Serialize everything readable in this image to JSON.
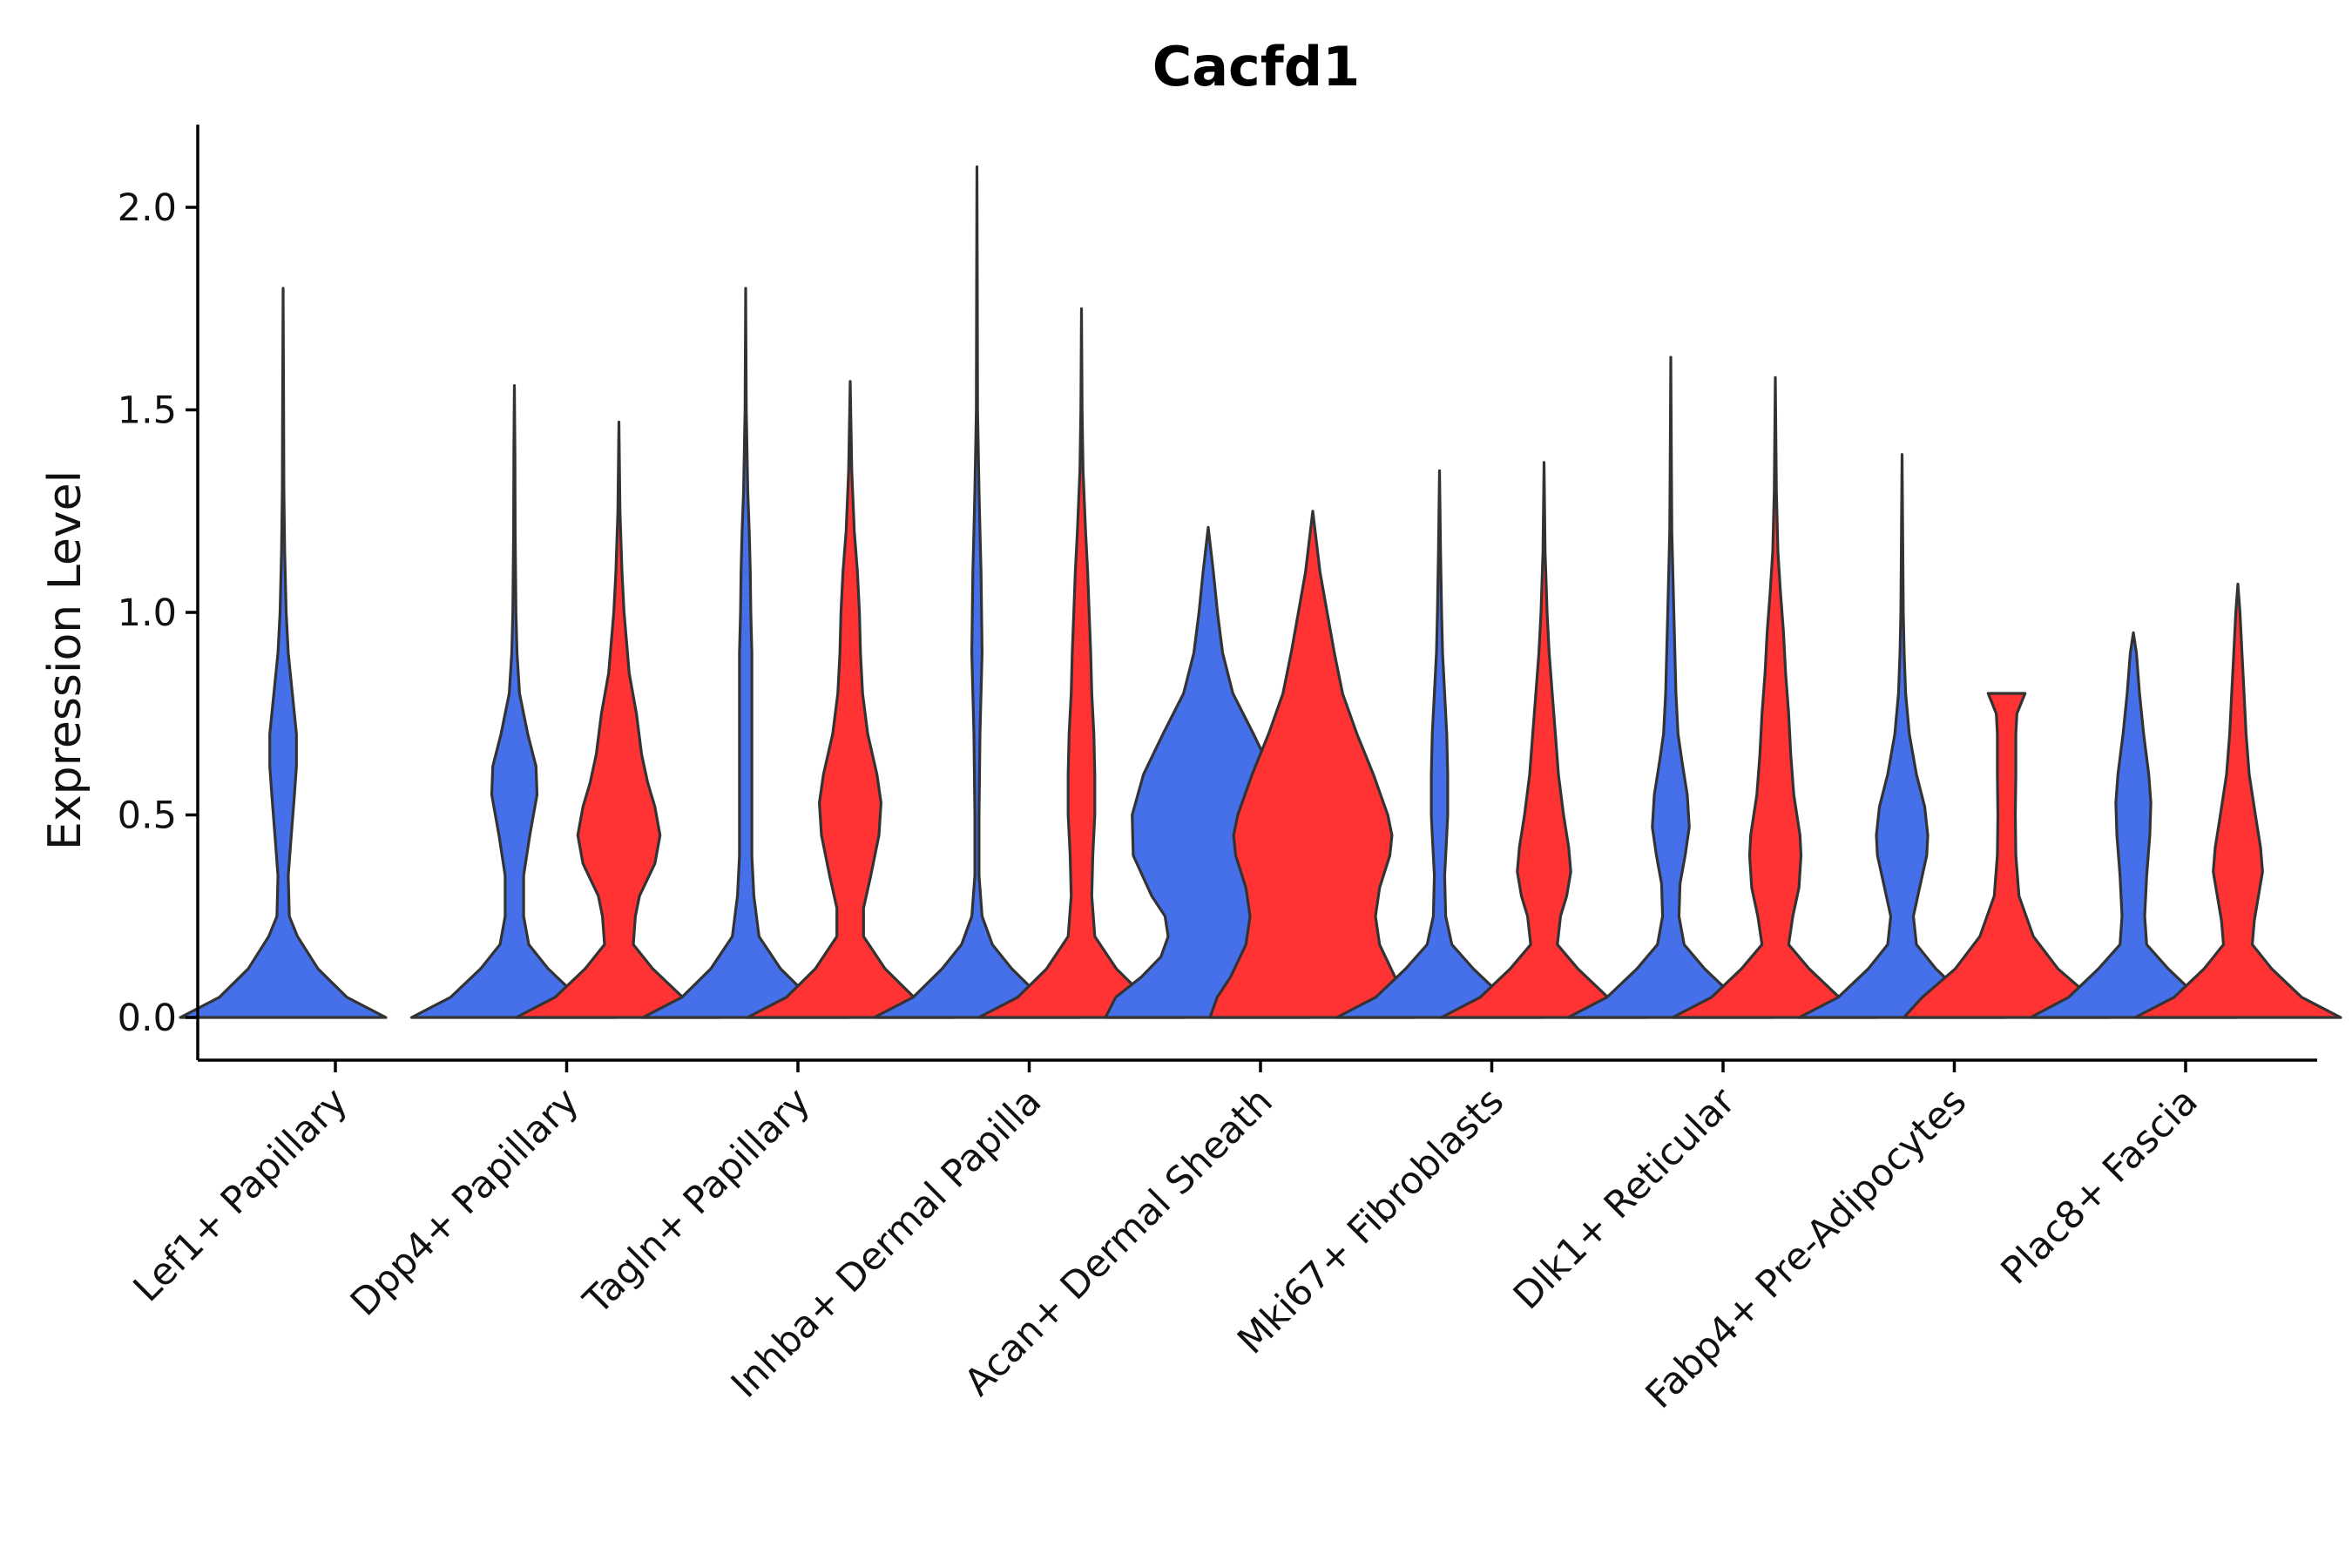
{
  "chart_data": {
    "type": "violin",
    "title": "Cacfd1",
    "xlabel": "",
    "ylabel": "Expression Level",
    "ylim": [
      -0.11,
      2.2
    ],
    "yticks": [
      0.0,
      0.5,
      1.0,
      1.5,
      2.0
    ],
    "ytick_labels": [
      "0.0",
      "0.5",
      "1.0",
      "1.5",
      "2.0"
    ],
    "grid": false,
    "legend": "none",
    "series_colors": [
      "#4670EA",
      "#FF3333"
    ],
    "categories": [
      "Lef1+ Papillary",
      "Dpp4+ Papillary",
      "Tagln+ Papillary",
      "Inhba+ Dermal Papilla",
      "Acan+ Dermal Sheath",
      "Mki67+ Fibroblasts",
      "Dlk1+ Reticular",
      "Fabp4+ Pre-Adipocytes",
      "Plac8+ Fascia"
    ],
    "violins": [
      {
        "category": "Lef1+ Papillary",
        "group": 0,
        "max": 1.8,
        "profile": [
          [
            0,
            1.0
          ],
          [
            0.05,
            0.62
          ],
          [
            0.12,
            0.34
          ],
          [
            0.2,
            0.14
          ],
          [
            0.25,
            0.06
          ],
          [
            0.35,
            0.05
          ],
          [
            0.45,
            0.08
          ],
          [
            0.55,
            0.11
          ],
          [
            0.62,
            0.13
          ],
          [
            0.7,
            0.13
          ],
          [
            0.8,
            0.09
          ],
          [
            0.9,
            0.05
          ],
          [
            1.0,
            0.03
          ],
          [
            1.15,
            0.015
          ],
          [
            1.3,
            0.008
          ],
          [
            1.5,
            0.005
          ],
          [
            1.8,
            0.0
          ]
        ]
      },
      {
        "category": "Dpp4+ Papillary",
        "group": 0,
        "max": 1.56,
        "profile": [
          [
            0,
            1.0
          ],
          [
            0.05,
            0.62
          ],
          [
            0.12,
            0.33
          ],
          [
            0.18,
            0.14
          ],
          [
            0.25,
            0.09
          ],
          [
            0.35,
            0.09
          ],
          [
            0.45,
            0.15
          ],
          [
            0.55,
            0.22
          ],
          [
            0.62,
            0.21
          ],
          [
            0.7,
            0.13
          ],
          [
            0.8,
            0.05
          ],
          [
            0.9,
            0.025
          ],
          [
            1.0,
            0.015
          ],
          [
            1.2,
            0.008
          ],
          [
            1.4,
            0.005
          ],
          [
            1.56,
            0.0
          ]
        ]
      },
      {
        "category": "Dpp4+ Papillary",
        "group": 1,
        "max": 1.47,
        "profile": [
          [
            0,
            1.0
          ],
          [
            0.05,
            0.62
          ],
          [
            0.12,
            0.33
          ],
          [
            0.18,
            0.14
          ],
          [
            0.25,
            0.16
          ],
          [
            0.3,
            0.2
          ],
          [
            0.38,
            0.35
          ],
          [
            0.45,
            0.4
          ],
          [
            0.52,
            0.35
          ],
          [
            0.58,
            0.28
          ],
          [
            0.65,
            0.22
          ],
          [
            0.75,
            0.17
          ],
          [
            0.85,
            0.1
          ],
          [
            1.0,
            0.05
          ],
          [
            1.1,
            0.03
          ],
          [
            1.25,
            0.01
          ],
          [
            1.47,
            0.0
          ]
        ]
      },
      {
        "category": "Tagln+ Papillary",
        "group": 0,
        "max": 1.8,
        "profile": [
          [
            0,
            1.0
          ],
          [
            0.05,
            0.62
          ],
          [
            0.12,
            0.34
          ],
          [
            0.2,
            0.13
          ],
          [
            0.3,
            0.08
          ],
          [
            0.4,
            0.06
          ],
          [
            0.5,
            0.06
          ],
          [
            0.6,
            0.06
          ],
          [
            0.7,
            0.06
          ],
          [
            0.8,
            0.06
          ],
          [
            0.9,
            0.06
          ],
          [
            1.0,
            0.05
          ],
          [
            1.1,
            0.045
          ],
          [
            1.2,
            0.035
          ],
          [
            1.3,
            0.02
          ],
          [
            1.5,
            0.006
          ],
          [
            1.8,
            0.0
          ]
        ]
      },
      {
        "category": "Tagln+ Papillary",
        "group": 1,
        "max": 1.57,
        "profile": [
          [
            0,
            1.0
          ],
          [
            0.05,
            0.62
          ],
          [
            0.12,
            0.34
          ],
          [
            0.2,
            0.13
          ],
          [
            0.27,
            0.13
          ],
          [
            0.35,
            0.2
          ],
          [
            0.45,
            0.28
          ],
          [
            0.53,
            0.3
          ],
          [
            0.6,
            0.26
          ],
          [
            0.7,
            0.17
          ],
          [
            0.8,
            0.12
          ],
          [
            0.9,
            0.1
          ],
          [
            1.0,
            0.09
          ],
          [
            1.1,
            0.07
          ],
          [
            1.2,
            0.04
          ],
          [
            1.35,
            0.015
          ],
          [
            1.57,
            0.0
          ]
        ]
      },
      {
        "category": "Inhba+ Dermal Papilla",
        "group": 0,
        "max": 2.1,
        "profile": [
          [
            0,
            1.0
          ],
          [
            0.05,
            0.62
          ],
          [
            0.12,
            0.34
          ],
          [
            0.18,
            0.15
          ],
          [
            0.25,
            0.05
          ],
          [
            0.35,
            0.02
          ],
          [
            0.5,
            0.02
          ],
          [
            0.7,
            0.03
          ],
          [
            0.85,
            0.045
          ],
          [
            0.9,
            0.05
          ],
          [
            1.0,
            0.045
          ],
          [
            1.1,
            0.04
          ],
          [
            1.2,
            0.03
          ],
          [
            1.3,
            0.02
          ],
          [
            1.5,
            0.006
          ],
          [
            1.8,
            0.003
          ],
          [
            2.1,
            0.0
          ]
        ]
      },
      {
        "category": "Inhba+ Dermal Papilla",
        "group": 1,
        "max": 1.75,
        "profile": [
          [
            0,
            1.0
          ],
          [
            0.05,
            0.62
          ],
          [
            0.12,
            0.34
          ],
          [
            0.2,
            0.13
          ],
          [
            0.3,
            0.1
          ],
          [
            0.4,
            0.11
          ],
          [
            0.5,
            0.13
          ],
          [
            0.6,
            0.13
          ],
          [
            0.7,
            0.12
          ],
          [
            0.8,
            0.1
          ],
          [
            0.9,
            0.09
          ],
          [
            1.0,
            0.075
          ],
          [
            1.1,
            0.06
          ],
          [
            1.2,
            0.04
          ],
          [
            1.35,
            0.015
          ],
          [
            1.5,
            0.006
          ],
          [
            1.75,
            0.0
          ]
        ]
      },
      {
        "category": "Acan+ Dermal Sheath",
        "group": 0,
        "max": 1.21,
        "profile": [
          [
            0,
            1.0
          ],
          [
            0.05,
            0.9
          ],
          [
            0.1,
            0.65
          ],
          [
            0.15,
            0.46
          ],
          [
            0.2,
            0.39
          ],
          [
            0.25,
            0.42
          ],
          [
            0.3,
            0.55
          ],
          [
            0.4,
            0.73
          ],
          [
            0.5,
            0.74
          ],
          [
            0.6,
            0.63
          ],
          [
            0.7,
            0.44
          ],
          [
            0.8,
            0.24
          ],
          [
            0.9,
            0.14
          ],
          [
            1.0,
            0.09
          ],
          [
            1.1,
            0.05
          ],
          [
            1.21,
            0.0
          ]
        ]
      },
      {
        "category": "Acan+ Dermal Sheath",
        "group": 1,
        "max": 1.25,
        "profile": [
          [
            0,
            1.0
          ],
          [
            0.05,
            0.93
          ],
          [
            0.1,
            0.8
          ],
          [
            0.18,
            0.65
          ],
          [
            0.25,
            0.61
          ],
          [
            0.32,
            0.65
          ],
          [
            0.4,
            0.75
          ],
          [
            0.45,
            0.77
          ],
          [
            0.5,
            0.73
          ],
          [
            0.6,
            0.59
          ],
          [
            0.7,
            0.43
          ],
          [
            0.8,
            0.29
          ],
          [
            0.9,
            0.21
          ],
          [
            1.0,
            0.14
          ],
          [
            1.1,
            0.07
          ],
          [
            1.25,
            0.0
          ]
        ]
      },
      {
        "category": "Mki67+ Fibroblasts",
        "group": 0,
        "max": 1.35,
        "profile": [
          [
            0,
            1.0
          ],
          [
            0.05,
            0.62
          ],
          [
            0.12,
            0.33
          ],
          [
            0.18,
            0.12
          ],
          [
            0.25,
            0.06
          ],
          [
            0.35,
            0.05
          ],
          [
            0.45,
            0.07
          ],
          [
            0.5,
            0.08
          ],
          [
            0.6,
            0.08
          ],
          [
            0.7,
            0.07
          ],
          [
            0.8,
            0.05
          ],
          [
            0.9,
            0.03
          ],
          [
            1.0,
            0.02
          ],
          [
            1.15,
            0.01
          ],
          [
            1.35,
            0.0
          ]
        ]
      },
      {
        "category": "Mki67+ Fibroblasts",
        "group": 1,
        "max": 1.37,
        "profile": [
          [
            0,
            1.0
          ],
          [
            0.05,
            0.62
          ],
          [
            0.12,
            0.33
          ],
          [
            0.18,
            0.13
          ],
          [
            0.25,
            0.16
          ],
          [
            0.3,
            0.22
          ],
          [
            0.36,
            0.26
          ],
          [
            0.42,
            0.24
          ],
          [
            0.5,
            0.19
          ],
          [
            0.6,
            0.14
          ],
          [
            0.7,
            0.11
          ],
          [
            0.8,
            0.08
          ],
          [
            0.9,
            0.05
          ],
          [
            1.0,
            0.03
          ],
          [
            1.15,
            0.01
          ],
          [
            1.37,
            0.0
          ]
        ]
      },
      {
        "category": "Dlk1+ Reticular",
        "group": 0,
        "max": 1.63,
        "profile": [
          [
            0,
            1.0
          ],
          [
            0.05,
            0.62
          ],
          [
            0.12,
            0.33
          ],
          [
            0.18,
            0.13
          ],
          [
            0.25,
            0.08
          ],
          [
            0.33,
            0.09
          ],
          [
            0.4,
            0.14
          ],
          [
            0.47,
            0.18
          ],
          [
            0.55,
            0.16
          ],
          [
            0.63,
            0.11
          ],
          [
            0.7,
            0.07
          ],
          [
            0.8,
            0.05
          ],
          [
            0.9,
            0.04
          ],
          [
            1.0,
            0.03
          ],
          [
            1.2,
            0.01
          ],
          [
            1.4,
            0.005
          ],
          [
            1.63,
            0.0
          ]
        ]
      },
      {
        "category": "Dlk1+ Reticular",
        "group": 1,
        "max": 1.58,
        "profile": [
          [
            0,
            1.0
          ],
          [
            0.05,
            0.62
          ],
          [
            0.12,
            0.33
          ],
          [
            0.18,
            0.13
          ],
          [
            0.25,
            0.17
          ],
          [
            0.32,
            0.23
          ],
          [
            0.4,
            0.25
          ],
          [
            0.45,
            0.24
          ],
          [
            0.55,
            0.18
          ],
          [
            0.65,
            0.15
          ],
          [
            0.75,
            0.13
          ],
          [
            0.85,
            0.1
          ],
          [
            0.95,
            0.08
          ],
          [
            1.05,
            0.05
          ],
          [
            1.15,
            0.025
          ],
          [
            1.3,
            0.01
          ],
          [
            1.58,
            0.0
          ]
        ]
      },
      {
        "category": "Fabp4+ Pre-Adipocytes",
        "group": 0,
        "max": 1.39,
        "profile": [
          [
            0,
            1.0
          ],
          [
            0.05,
            0.62
          ],
          [
            0.12,
            0.33
          ],
          [
            0.18,
            0.14
          ],
          [
            0.25,
            0.11
          ],
          [
            0.32,
            0.17
          ],
          [
            0.4,
            0.24
          ],
          [
            0.45,
            0.25
          ],
          [
            0.52,
            0.22
          ],
          [
            0.6,
            0.14
          ],
          [
            0.7,
            0.07
          ],
          [
            0.8,
            0.035
          ],
          [
            0.9,
            0.02
          ],
          [
            1.0,
            0.012
          ],
          [
            1.2,
            0.006
          ],
          [
            1.39,
            0.0
          ]
        ]
      },
      {
        "category": "Fabp4+ Pre-Adipocytes",
        "group": 1,
        "max": 0.8,
        "profile": [
          [
            0,
            1.0
          ],
          [
            0.05,
            0.82
          ],
          [
            0.12,
            0.5
          ],
          [
            0.2,
            0.26
          ],
          [
            0.3,
            0.12
          ],
          [
            0.4,
            0.09
          ],
          [
            0.5,
            0.085
          ],
          [
            0.6,
            0.09
          ],
          [
            0.7,
            0.09
          ],
          [
            0.75,
            0.1
          ],
          [
            0.8,
            0.18
          ]
        ]
      },
      {
        "category": "Plac8+ Fascia",
        "group": 0,
        "max": 0.95,
        "profile": [
          [
            0,
            1.0
          ],
          [
            0.05,
            0.63
          ],
          [
            0.12,
            0.34
          ],
          [
            0.18,
            0.13
          ],
          [
            0.25,
            0.11
          ],
          [
            0.35,
            0.13
          ],
          [
            0.45,
            0.16
          ],
          [
            0.53,
            0.17
          ],
          [
            0.6,
            0.15
          ],
          [
            0.7,
            0.1
          ],
          [
            0.8,
            0.06
          ],
          [
            0.9,
            0.03
          ],
          [
            0.95,
            0.0
          ]
        ]
      },
      {
        "category": "Plac8+ Fascia",
        "group": 1,
        "max": 1.07,
        "profile": [
          [
            0,
            1.0
          ],
          [
            0.05,
            0.62
          ],
          [
            0.12,
            0.33
          ],
          [
            0.18,
            0.14
          ],
          [
            0.24,
            0.16
          ],
          [
            0.3,
            0.2
          ],
          [
            0.36,
            0.24
          ],
          [
            0.42,
            0.22
          ],
          [
            0.5,
            0.17
          ],
          [
            0.6,
            0.11
          ],
          [
            0.7,
            0.08
          ],
          [
            0.8,
            0.06
          ],
          [
            0.9,
            0.04
          ],
          [
            1.0,
            0.02
          ],
          [
            1.07,
            0.0
          ]
        ]
      }
    ]
  }
}
